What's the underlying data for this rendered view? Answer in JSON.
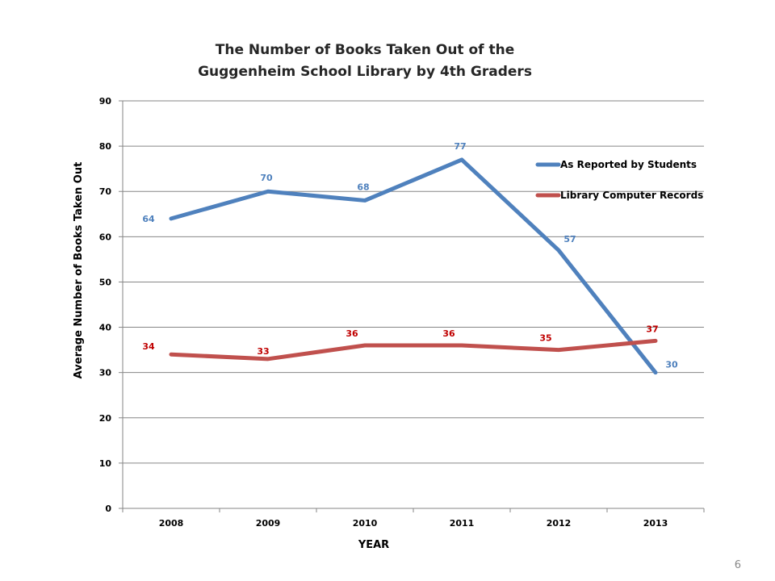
{
  "page": {
    "number": "6"
  },
  "chart_data": {
    "type": "line",
    "title_lines": [
      "The Number of Books Taken Out of the",
      "Guggenheim School Library by 4th Graders"
    ],
    "xlabel": "YEAR",
    "ylabel": "Average Number of Books Taken Out",
    "categories": [
      "2008",
      "2009",
      "2010",
      "2011",
      "2012",
      "2013"
    ],
    "ylim": [
      0,
      90
    ],
    "yticks": [
      0,
      10,
      20,
      30,
      40,
      50,
      60,
      70,
      80,
      90
    ],
    "grid": true,
    "legend_position": "right",
    "series": [
      {
        "name": "As Reported by Students",
        "color": "#4F81BD",
        "values": [
          64,
          70,
          68,
          77,
          57,
          30
        ]
      },
      {
        "name": "Library Computer Records",
        "color": "#C0504D",
        "values": [
          34,
          33,
          36,
          36,
          35,
          37
        ]
      }
    ]
  }
}
